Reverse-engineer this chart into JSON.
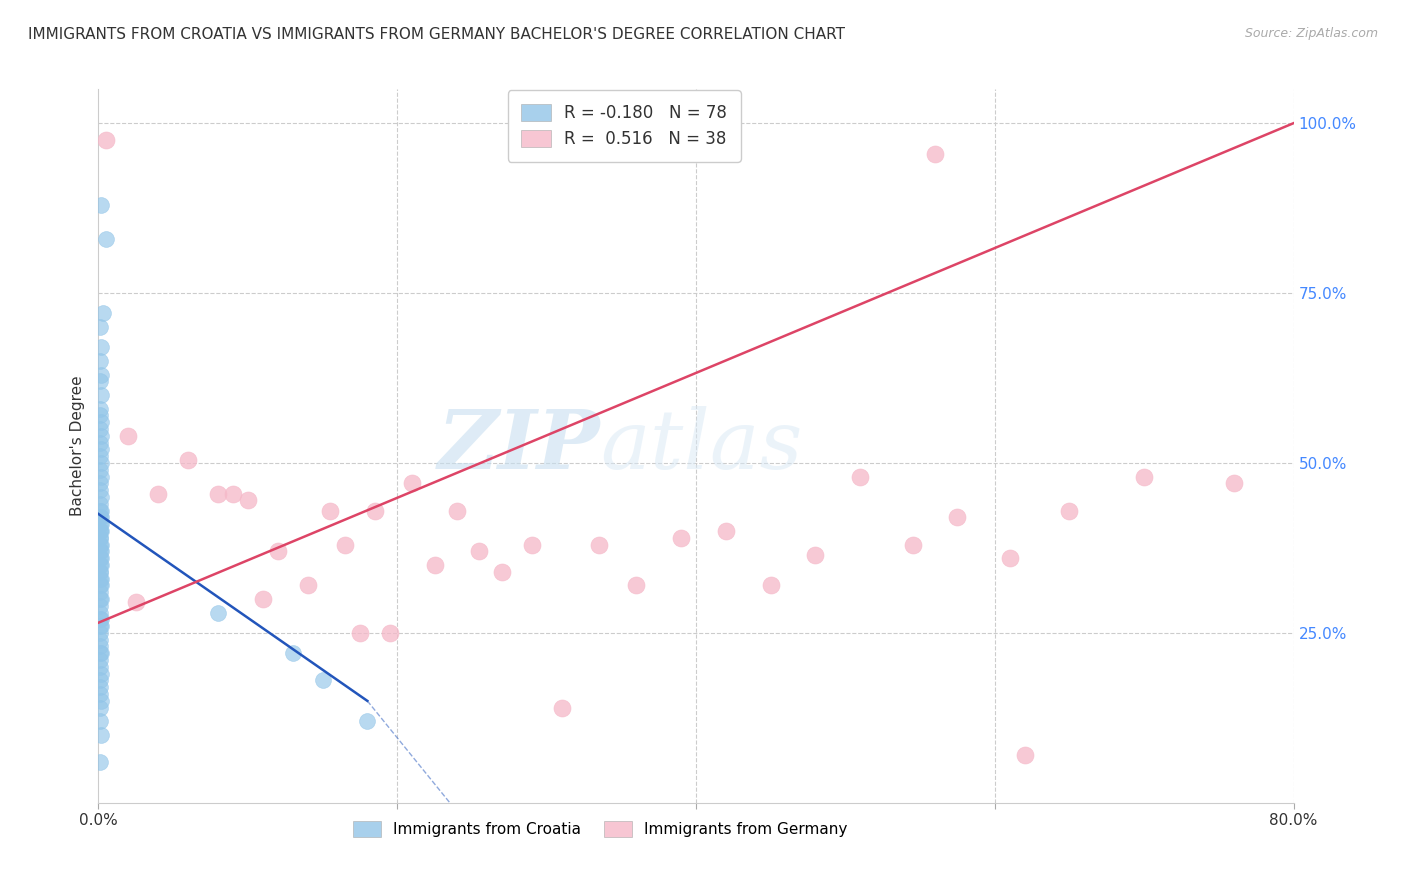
{
  "title": "IMMIGRANTS FROM CROATIA VS IMMIGRANTS FROM GERMANY BACHELOR'S DEGREE CORRELATION CHART",
  "source": "Source: ZipAtlas.com",
  "ylabel": "Bachelor's Degree",
  "watermark_zip": "ZIP",
  "watermark_atlas": "atlas",
  "xlim": [
    0.0,
    0.8
  ],
  "ylim": [
    0.0,
    1.05
  ],
  "xticks": [
    0.0,
    0.2,
    0.4,
    0.6,
    0.8
  ],
  "xticklabels": [
    "0.0%",
    "",
    "",
    "",
    "80.0%"
  ],
  "yticks": [
    0.25,
    0.5,
    0.75,
    1.0
  ],
  "yticklabels": [
    "25.0%",
    "50.0%",
    "75.0%",
    "100.0%"
  ],
  "croatia_color": "#92c5e8",
  "germany_color": "#f5b8c8",
  "croatia_R": -0.18,
  "croatia_N": 78,
  "germany_R": 0.516,
  "germany_N": 38,
  "croatia_line_color": "#2255bb",
  "germany_line_color": "#dd4466",
  "croatia_x": [
    0.002,
    0.005,
    0.003,
    0.001,
    0.002,
    0.001,
    0.002,
    0.001,
    0.002,
    0.001,
    0.001,
    0.002,
    0.001,
    0.002,
    0.001,
    0.002,
    0.001,
    0.002,
    0.001,
    0.002,
    0.001,
    0.001,
    0.002,
    0.001,
    0.002,
    0.001,
    0.001,
    0.002,
    0.001,
    0.002,
    0.001,
    0.001,
    0.002,
    0.001,
    0.001,
    0.002,
    0.001,
    0.002,
    0.001,
    0.002,
    0.001,
    0.001,
    0.002,
    0.001,
    0.001,
    0.001,
    0.002,
    0.001,
    0.002,
    0.001,
    0.001,
    0.002,
    0.001,
    0.001,
    0.002,
    0.001,
    0.001,
    0.002,
    0.001,
    0.001,
    0.001,
    0.002,
    0.001,
    0.001,
    0.001,
    0.002,
    0.001,
    0.001,
    0.001,
    0.002,
    0.001,
    0.001,
    0.002,
    0.001,
    0.08,
    0.13,
    0.15,
    0.18
  ],
  "croatia_y": [
    0.88,
    0.83,
    0.72,
    0.7,
    0.67,
    0.65,
    0.63,
    0.62,
    0.6,
    0.58,
    0.57,
    0.56,
    0.55,
    0.54,
    0.53,
    0.52,
    0.51,
    0.5,
    0.49,
    0.48,
    0.47,
    0.46,
    0.45,
    0.44,
    0.43,
    0.43,
    0.42,
    0.42,
    0.41,
    0.41,
    0.4,
    0.4,
    0.4,
    0.39,
    0.39,
    0.38,
    0.38,
    0.37,
    0.37,
    0.36,
    0.36,
    0.35,
    0.35,
    0.34,
    0.34,
    0.33,
    0.33,
    0.32,
    0.32,
    0.31,
    0.3,
    0.3,
    0.29,
    0.28,
    0.27,
    0.27,
    0.26,
    0.26,
    0.25,
    0.24,
    0.23,
    0.22,
    0.22,
    0.21,
    0.2,
    0.19,
    0.18,
    0.17,
    0.16,
    0.15,
    0.14,
    0.12,
    0.1,
    0.06,
    0.28,
    0.22,
    0.18,
    0.12
  ],
  "germany_x": [
    0.005,
    0.02,
    0.025,
    0.04,
    0.06,
    0.08,
    0.09,
    0.1,
    0.11,
    0.12,
    0.14,
    0.155,
    0.165,
    0.175,
    0.185,
    0.195,
    0.21,
    0.225,
    0.24,
    0.255,
    0.27,
    0.29,
    0.31,
    0.335,
    0.36,
    0.39,
    0.42,
    0.45,
    0.48,
    0.51,
    0.545,
    0.575,
    0.61,
    0.65,
    0.7,
    0.76,
    0.62,
    0.56
  ],
  "germany_y": [
    0.975,
    0.54,
    0.295,
    0.455,
    0.505,
    0.455,
    0.455,
    0.445,
    0.3,
    0.37,
    0.32,
    0.43,
    0.38,
    0.25,
    0.43,
    0.25,
    0.47,
    0.35,
    0.43,
    0.37,
    0.34,
    0.38,
    0.14,
    0.38,
    0.32,
    0.39,
    0.4,
    0.32,
    0.365,
    0.48,
    0.38,
    0.42,
    0.36,
    0.43,
    0.48,
    0.47,
    0.07,
    0.955
  ],
  "grid_color": "#cccccc",
  "bg_color": "#ffffff",
  "title_fontsize": 11,
  "axis_label_fontsize": 11,
  "tick_fontsize": 11,
  "source_fontsize": 9
}
